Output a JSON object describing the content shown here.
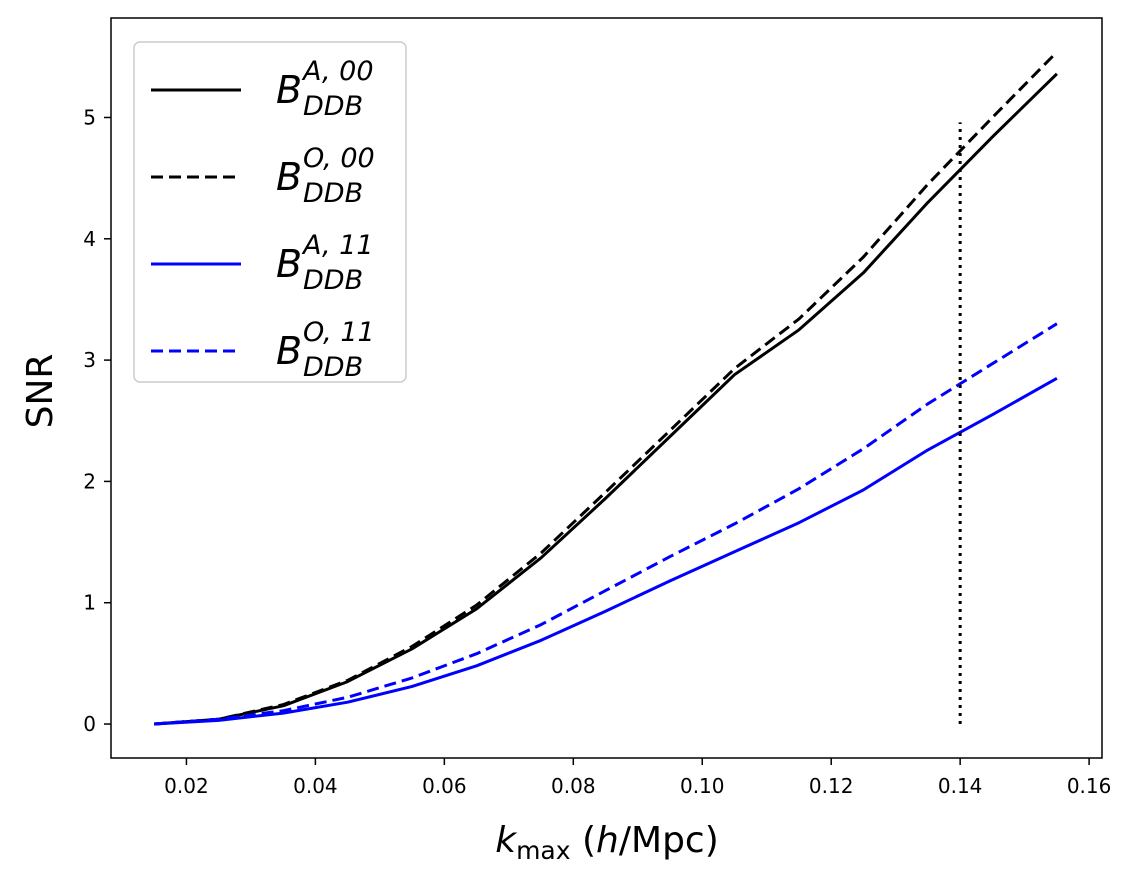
{
  "chart_data": {
    "type": "line",
    "xlabel": {
      "main": "k",
      "sub": "max",
      "unit_prefix": " (",
      "unit_italic": "h",
      "unit_rest": "/Mpc)"
    },
    "ylabel": "SNR",
    "xlim": [
      0.0083,
      0.162
    ],
    "ylim": [
      -0.28,
      5.82
    ],
    "xticks": [
      {
        "value": 0.02,
        "label": "0.02"
      },
      {
        "value": 0.04,
        "label": "0.04"
      },
      {
        "value": 0.06,
        "label": "0.06"
      },
      {
        "value": 0.08,
        "label": "0.08"
      },
      {
        "value": 0.1,
        "label": "0.10"
      },
      {
        "value": 0.12,
        "label": "0.12"
      },
      {
        "value": 0.14,
        "label": "0.14"
      },
      {
        "value": 0.16,
        "label": "0.16"
      }
    ],
    "yticks": [
      {
        "value": 0,
        "label": "0"
      },
      {
        "value": 1,
        "label": "1"
      },
      {
        "value": 2,
        "label": "2"
      },
      {
        "value": 3,
        "label": "3"
      },
      {
        "value": 4,
        "label": "4"
      },
      {
        "value": 5,
        "label": "5"
      }
    ],
    "x": [
      0.015,
      0.025,
      0.035,
      0.045,
      0.055,
      0.065,
      0.075,
      0.085,
      0.095,
      0.105,
      0.115,
      0.125,
      0.135,
      0.145,
      0.155
    ],
    "series": [
      {
        "name": "B_DDB^{A,00}",
        "base": "B",
        "sub": "DDB",
        "sup": "A, 00",
        "color": "#000000",
        "dash": "solid",
        "values": [
          0.0,
          0.04,
          0.15,
          0.35,
          0.62,
          0.95,
          1.37,
          1.86,
          2.37,
          2.88,
          3.25,
          3.72,
          4.3,
          4.84,
          5.36
        ]
      },
      {
        "name": "B_DDB^{O,00}",
        "base": "B",
        "sub": "DDB",
        "sup": "O, 00",
        "color": "#000000",
        "dash": "dashed",
        "values": [
          0.0,
          0.04,
          0.16,
          0.36,
          0.64,
          0.98,
          1.41,
          1.91,
          2.42,
          2.93,
          3.34,
          3.85,
          4.45,
          5.0,
          5.54
        ]
      },
      {
        "name": "B_DDB^{A,11}",
        "base": "B",
        "sub": "DDB",
        "sup": "A, 11",
        "color": "#0000ff",
        "dash": "solid",
        "values": [
          0.0,
          0.03,
          0.09,
          0.18,
          0.31,
          0.48,
          0.69,
          0.93,
          1.18,
          1.42,
          1.66,
          1.93,
          2.26,
          2.55,
          2.85
        ]
      },
      {
        "name": "B_DDB^{O,11}",
        "base": "B",
        "sub": "DDB",
        "sup": "O, 11",
        "color": "#0000ff",
        "dash": "dashed",
        "values": [
          0.0,
          0.04,
          0.11,
          0.22,
          0.38,
          0.58,
          0.82,
          1.1,
          1.38,
          1.65,
          1.94,
          2.27,
          2.64,
          2.97,
          3.3
        ]
      }
    ],
    "vline": {
      "x": 0.14,
      "ymin": 0.0,
      "ymax": 4.96,
      "color": "#000000",
      "style": "dotted"
    },
    "legend": {
      "placement": "top-left"
    }
  }
}
